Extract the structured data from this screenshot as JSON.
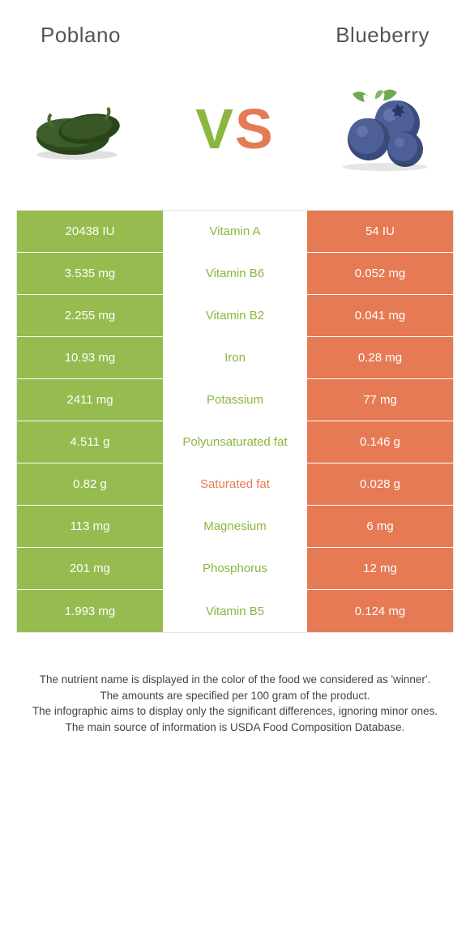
{
  "header": {
    "left_title": "Poblano",
    "right_title": "Blueberry"
  },
  "vs": {
    "v": "V",
    "s": "S"
  },
  "colors": {
    "green": "#96bb4e",
    "orange": "#e67a54",
    "green_text": "#8bb63f",
    "orange_text": "#e67a54",
    "border": "#e6e6e6",
    "background": "#ffffff"
  },
  "table": {
    "rows": [
      {
        "left": "20438 IU",
        "label": "Vitamin A",
        "right": "54 IU",
        "winner": "left"
      },
      {
        "left": "3.535 mg",
        "label": "Vitamin B6",
        "right": "0.052 mg",
        "winner": "left"
      },
      {
        "left": "2.255 mg",
        "label": "Vitamin B2",
        "right": "0.041 mg",
        "winner": "left"
      },
      {
        "left": "10.93 mg",
        "label": "Iron",
        "right": "0.28 mg",
        "winner": "left"
      },
      {
        "left": "2411 mg",
        "label": "Potassium",
        "right": "77 mg",
        "winner": "left"
      },
      {
        "left": "4.511 g",
        "label": "Polyunsaturated fat",
        "right": "0.146 g",
        "winner": "left"
      },
      {
        "left": "0.82 g",
        "label": "Saturated fat",
        "right": "0.028 g",
        "winner": "right"
      },
      {
        "left": "113 mg",
        "label": "Magnesium",
        "right": "6 mg",
        "winner": "left"
      },
      {
        "left": "201 mg",
        "label": "Phosphorus",
        "right": "12 mg",
        "winner": "left"
      },
      {
        "left": "1.993 mg",
        "label": "Vitamin B5",
        "right": "0.124 mg",
        "winner": "left"
      }
    ]
  },
  "footer": {
    "line1": "The nutrient name is displayed in the color of the food we considered as 'winner'.",
    "line2": "The amounts are specified per 100 gram of the product.",
    "line3": "The infographic aims to display only the significant differences, ignoring minor ones.",
    "line4": "The main source of information is USDA Food Composition Database."
  }
}
